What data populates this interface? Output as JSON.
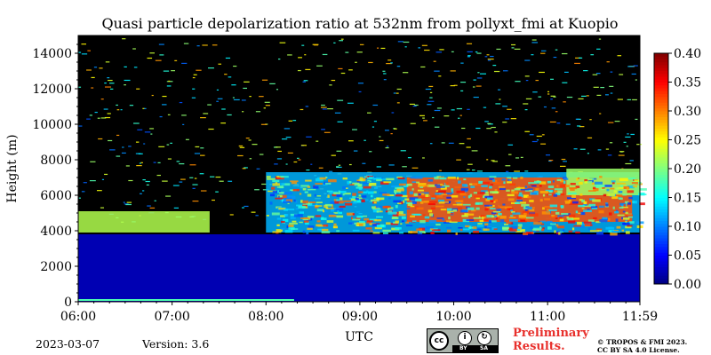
{
  "chart_data": {
    "type": "heatmap",
    "title": "Quasi particle depolarization ratio at 532nm from pollyxt_fmi at Kuopio",
    "xlabel": "UTC",
    "ylabel": "Height (m)",
    "x_ticks": [
      "06:00",
      "07:00",
      "08:00",
      "09:00",
      "10:00",
      "11:00",
      "11:59"
    ],
    "x_range_hours": [
      6.0,
      11.983
    ],
    "y_ticks": [
      0,
      2000,
      4000,
      6000,
      8000,
      10000,
      12000,
      14000
    ],
    "ylim": [
      0,
      15000
    ],
    "colorbar": {
      "ticks": [
        "0.00",
        "0.05",
        "0.10",
        "0.15",
        "0.20",
        "0.25",
        "0.30",
        "0.35",
        "0.40"
      ],
      "range": [
        0.0,
        0.4
      ],
      "colormap": "jet"
    },
    "no_data_color": "#000000",
    "features": [
      {
        "name": "boundary layer",
        "t_start": 6.0,
        "t_end": 11.983,
        "h_bottom": 0,
        "h_top": 3800,
        "value": 0.02
      },
      {
        "name": "elevated layer",
        "t_start": 6.0,
        "t_end": 7.4,
        "h_bottom": 3900,
        "h_top": 5100,
        "value": 0.22
      },
      {
        "name": "aerosol layer",
        "t_start": 8.0,
        "t_end": 11.983,
        "h_bottom": 3900,
        "h_top": 7300,
        "value": 0.12
      },
      {
        "name": "high depolarization patch",
        "t_start": 9.5,
        "t_end": 11.9,
        "h_bottom": 4500,
        "h_top": 7000,
        "value": 0.32
      },
      {
        "name": "upper cloud",
        "t_start": 11.2,
        "t_end": 11.983,
        "h_bottom": 6000,
        "h_top": 7500,
        "value": 0.21
      }
    ]
  },
  "footer": {
    "date": "2023-03-07",
    "version": "Version: 3.6",
    "preliminary_line1": "Preliminary",
    "preliminary_line2": "Results.",
    "copyright_line1": "© TROPOS & FMI 2023.",
    "copyright_line2": "CC BY SA 4.0 License.",
    "license_badge_left": "cc",
    "license_badge_by": "BY",
    "license_badge_sa": "SA"
  }
}
